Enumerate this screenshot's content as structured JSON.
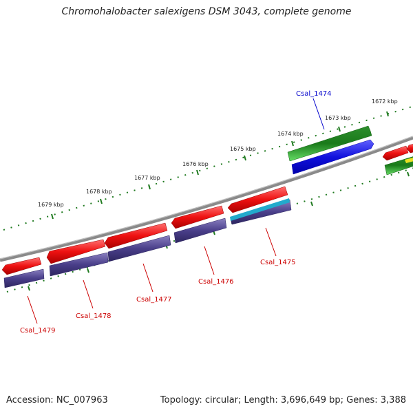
{
  "title": "Chromohalobacter salexigens DSM 3043, complete genome",
  "footer": {
    "accession": "Accession: NC_007963",
    "summary": "Topology: circular; Length: 3,696,649 bp; Genes: 3,388"
  },
  "colors": {
    "backbone": "#8a8a8a",
    "tick": "#1f7a1f",
    "gene_forward": "#1a8a1a",
    "gene_forward_light": "#44cc44",
    "cds_forward": "#1111dd",
    "gene_reverse": "#ee1111",
    "cds_reverse": "#4a3f8a",
    "cds_cyan": "#22aacc",
    "label_forward": "#0000cc",
    "label_reverse": "#cc0000"
  },
  "scale_labels": [
    "1679 kbp",
    "1678 kbp",
    "1677 kbp",
    "1676 kbp",
    "1675 kbp",
    "1674 kbp",
    "1673 kbp",
    "1672 kbp"
  ],
  "genes": [
    {
      "name": "Csal_1474",
      "strand": "forward"
    },
    {
      "name": "Csal_1475",
      "strand": "reverse"
    },
    {
      "name": "Csal_1476",
      "strand": "reverse"
    },
    {
      "name": "Csal_1477",
      "strand": "reverse"
    },
    {
      "name": "Csal_1478",
      "strand": "reverse"
    },
    {
      "name": "Csal_1479",
      "strand": "reverse"
    }
  ]
}
